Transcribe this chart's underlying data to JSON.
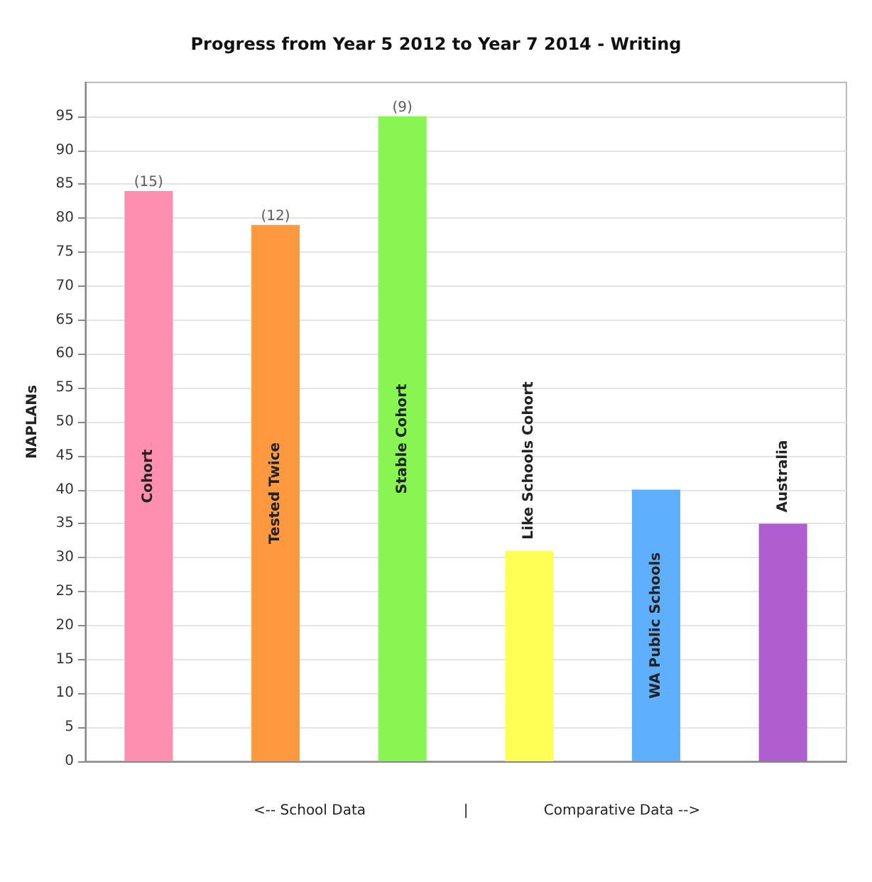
{
  "chart_data": {
    "type": "bar",
    "title": "Progress from Year 5 2012 to Year 7 2014 - Writing",
    "ylabel": "NAPLANs",
    "categories": [
      "Cohort",
      "Tested Twice",
      "Stable Cohort",
      "Like Schools Cohort",
      "WA Public Schools",
      "Australia"
    ],
    "values": [
      84,
      79,
      95,
      31,
      40,
      35
    ],
    "colors": [
      "#ff8fb0",
      "#ff9940",
      "#88f552",
      "#ffff55",
      "#5eb0ff",
      "#b05dd0"
    ],
    "ylim": [
      0,
      100
    ],
    "yticks": [
      0,
      5,
      10,
      15,
      20,
      25,
      30,
      35,
      40,
      45,
      50,
      55,
      60,
      65,
      70,
      75,
      80,
      85,
      90,
      95
    ],
    "grid": "y",
    "tick_labels": "y",
    "annotations": [
      {
        "text": "(15)",
        "x": "Cohort",
        "y": 84
      },
      {
        "text": "(12)",
        "x": "Tested Twice",
        "y": 79
      },
      {
        "text": "(9)",
        "x": "Stable Cohort",
        "y": 95
      },
      "<-- School Data",
      "|",
      "Comparative Data -->"
    ]
  }
}
